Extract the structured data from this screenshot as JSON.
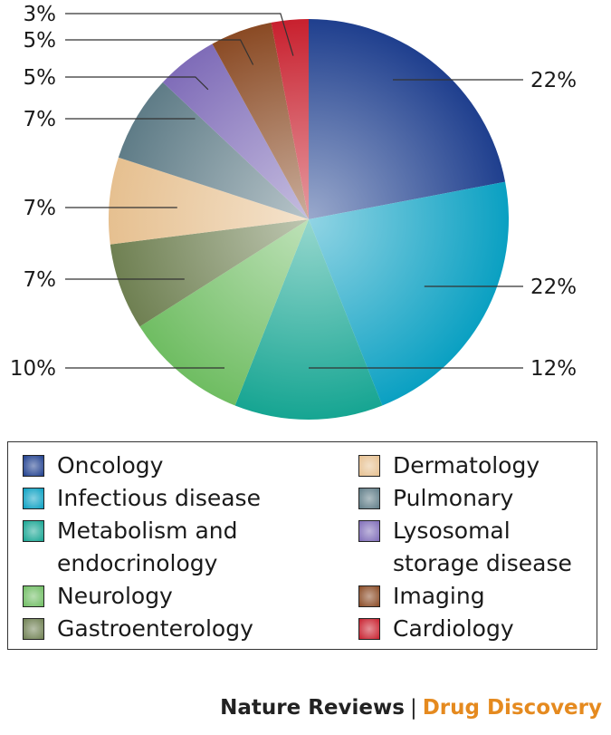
{
  "chart_data": {
    "type": "pie",
    "unit": "%",
    "slices": [
      {
        "label": "Oncology",
        "value": 22,
        "display": "22%",
        "color": "#1f3f8e"
      },
      {
        "label": "Infectious disease",
        "value": 22,
        "display": "22%",
        "color": "#0aa0c2"
      },
      {
        "label": "Metabolism and endocrinology",
        "value": 12,
        "display": "12%",
        "color": "#16a592"
      },
      {
        "label": "Neurology",
        "value": 10,
        "display": "10%",
        "color": "#6fbd62"
      },
      {
        "label": "Gastroenterology",
        "value": 7,
        "display": "7%",
        "color": "#6f8052"
      },
      {
        "label": "Dermatology",
        "value": 7,
        "display": "7%",
        "color": "#e6c090"
      },
      {
        "label": "Pulmonary",
        "value": 7,
        "display": "7%",
        "color": "#5f7c87"
      },
      {
        "label": "Lysosomal storage disease",
        "value": 5,
        "display": "5%",
        "color": "#7f6cb8"
      },
      {
        "label": "Imaging",
        "value": 5,
        "display": "5%",
        "color": "#8a4a24"
      },
      {
        "label": "Cardiology",
        "value": 3,
        "display": "3%",
        "color": "#c8202e"
      }
    ],
    "legend": {
      "left": [
        "Oncology",
        "Infectious disease",
        "Metabolism and endocrinology",
        "Neurology",
        "Gastroenterology"
      ],
      "right": [
        "Dermatology",
        "Pulmonary",
        "Lysosomal storage disease",
        "Imaging",
        "Cardiology"
      ]
    },
    "legend_placement": "bottom"
  },
  "legend_text": {
    "oncology": "Oncology",
    "infectious": "Infectious disease",
    "metabolism_line1": "Metabolism and",
    "metabolism_line2": "endocrinology",
    "neurology": "Neurology",
    "gastro": "Gastroenterology",
    "dermatology": "Dermatology",
    "pulmonary": "Pulmonary",
    "lysosomal_line1": "Lysosomal",
    "lysosomal_line2": "storage disease",
    "imaging": "Imaging",
    "cardiology": "Cardiology"
  },
  "footer": {
    "journal": "Nature Reviews",
    "separator": "|",
    "section": "Drug Discovery"
  }
}
